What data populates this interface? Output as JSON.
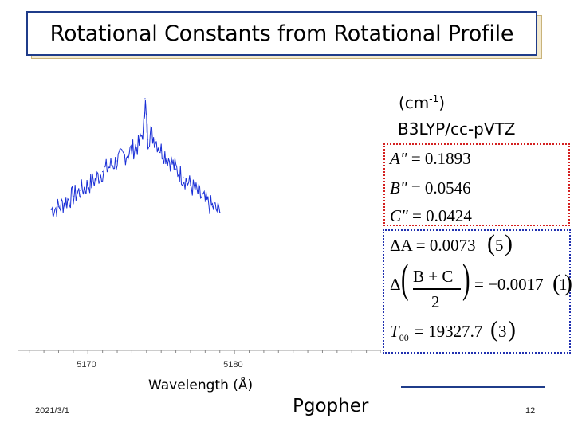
{
  "slide": {
    "title": "Rotational Constants from Rotational Profile",
    "units_prefix": "(cm",
    "units_exp": "-1",
    "units_suffix": ")",
    "method": "B3LYP/cc-pVTZ",
    "calculated": [
      {
        "symbol": "A″",
        "value": "= 0.1893"
      },
      {
        "symbol": "B″",
        "value": "= 0.0546"
      },
      {
        "symbol": "C″",
        "value": "= 0.0424"
      }
    ],
    "fit": {
      "delta_a": "ΔA = 0.0073",
      "delta_a_unc": "5",
      "delta_bc_sym": "Δ",
      "delta_bc_num": "B + C",
      "delta_bc_den": "2",
      "delta_bc_val": "= −0.0017",
      "delta_bc_unc": "1",
      "t00": "= 19327.7",
      "t00_sym": "T",
      "t00_sub": "00",
      "t00_unc": "3"
    }
  },
  "footer": {
    "date": "2021/3/1",
    "center": "Pgopher",
    "page": "12"
  },
  "chart_data": {
    "type": "line",
    "xlabel": "Wavelength (Å)",
    "ylabel": "",
    "xlim": [
      5165.2,
      5190
    ],
    "x_ticks": [
      5170,
      5180
    ],
    "ylim": [
      0,
      1
    ],
    "grid": false,
    "series": [
      {
        "color": "#1a2fd6",
        "x": [
          5167.5,
          5168.0,
          5168.5,
          5169.0,
          5169.5,
          5170.0,
          5170.5,
          5171.0,
          5171.5,
          5172.0,
          5172.5,
          5173.0,
          5173.5,
          5173.8,
          5173.9,
          5174.0,
          5174.1,
          5174.3,
          5174.6,
          5175.0,
          5175.5,
          5176.0,
          5176.5,
          5177.0,
          5177.5,
          5178.0,
          5178.5,
          5179.0
        ],
        "y": [
          0.52,
          0.53,
          0.55,
          0.57,
          0.59,
          0.61,
          0.63,
          0.66,
          0.68,
          0.7,
          0.72,
          0.74,
          0.76,
          0.82,
          0.93,
          0.84,
          0.78,
          0.8,
          0.78,
          0.74,
          0.71,
          0.67,
          0.64,
          0.61,
          0.58,
          0.55,
          0.53,
          0.51
        ]
      }
    ]
  }
}
